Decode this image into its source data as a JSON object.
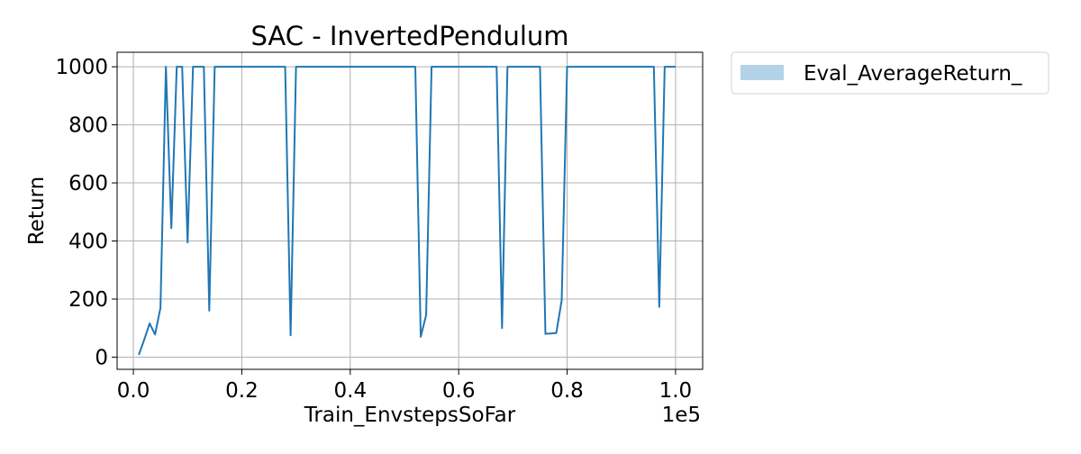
{
  "chart_data": {
    "type": "line",
    "title": "SAC - InvertedPendulum",
    "xlabel": "Train_EnvstepsSoFar",
    "ylabel": "Return",
    "x_offset_label": "1e5",
    "xlim": [
      -0.03,
      1.05
    ],
    "ylim": [
      -42,
      1050
    ],
    "xticks": [
      0.0,
      0.2,
      0.4,
      0.6,
      0.8,
      1.0
    ],
    "xtick_labels": [
      "0.0",
      "0.2",
      "0.4",
      "0.6",
      "0.8",
      "1.0"
    ],
    "yticks": [
      0,
      200,
      400,
      600,
      800,
      1000
    ],
    "ytick_labels": [
      "0",
      "200",
      "400",
      "600",
      "800",
      "1000"
    ],
    "grid": true,
    "legend_position": "outside-top-right",
    "series": [
      {
        "name": "Eval_AverageReturn_",
        "color": "#1f77b4",
        "legend_patch_color": "#b5d3e8",
        "points": [
          [
            0.01,
            8
          ],
          [
            0.02,
            60
          ],
          [
            0.03,
            116
          ],
          [
            0.04,
            78
          ],
          [
            0.05,
            170
          ],
          [
            0.06,
            1000
          ],
          [
            0.07,
            444
          ],
          [
            0.08,
            1000
          ],
          [
            0.09,
            1000
          ],
          [
            0.1,
            395
          ],
          [
            0.11,
            1000
          ],
          [
            0.12,
            1000
          ],
          [
            0.13,
            1000
          ],
          [
            0.14,
            160
          ],
          [
            0.15,
            1000
          ],
          [
            0.16,
            1000
          ],
          [
            0.28,
            1000
          ],
          [
            0.29,
            75
          ],
          [
            0.3,
            1000
          ],
          [
            0.52,
            1000
          ],
          [
            0.53,
            70
          ],
          [
            0.54,
            145
          ],
          [
            0.55,
            1000
          ],
          [
            0.67,
            1000
          ],
          [
            0.68,
            100
          ],
          [
            0.69,
            1000
          ],
          [
            0.75,
            1000
          ],
          [
            0.76,
            80
          ],
          [
            0.78,
            83
          ],
          [
            0.79,
            195
          ],
          [
            0.8,
            1000
          ],
          [
            0.96,
            1000
          ],
          [
            0.97,
            173
          ],
          [
            0.98,
            1000
          ],
          [
            1.0,
            1000
          ]
        ]
      }
    ]
  }
}
